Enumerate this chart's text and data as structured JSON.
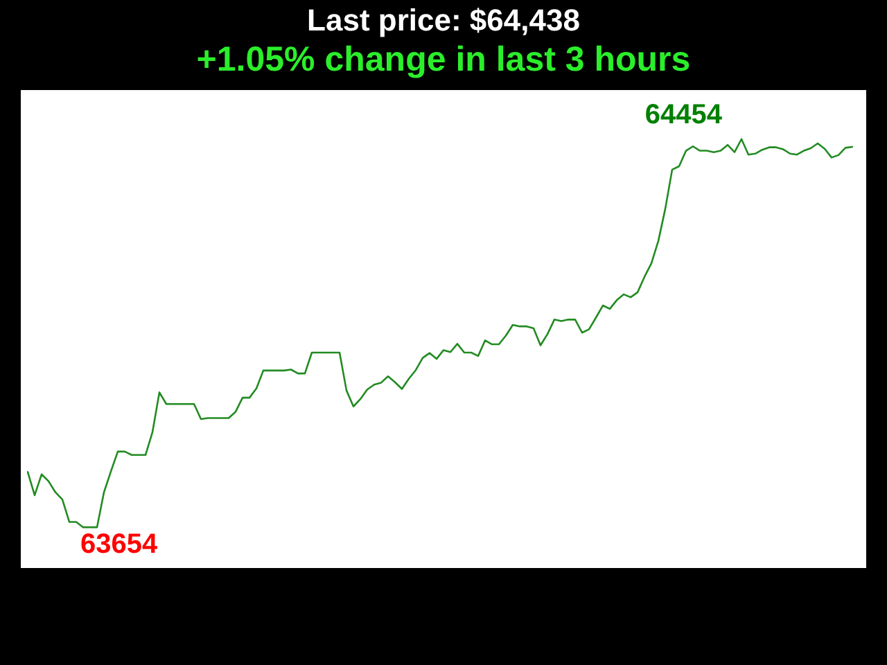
{
  "chart_data": {
    "type": "line",
    "title": "Last price: $64,438",
    "subtitle": "+1.05% change in last 3 hours",
    "categories": [
      null,
      null,
      null,
      null,
      null,
      null,
      null,
      null,
      null,
      null,
      null,
      null,
      null,
      null,
      null,
      null,
      null,
      null,
      null,
      null,
      null,
      null,
      null,
      null,
      null,
      null,
      null,
      null,
      null,
      null,
      null,
      null,
      null,
      null,
      null,
      null,
      null,
      null,
      null,
      null,
      null,
      null,
      null,
      null,
      null,
      null,
      null,
      null,
      null,
      null,
      null,
      null,
      null,
      null,
      null,
      null,
      null,
      null,
      null,
      null,
      null,
      null,
      null,
      null,
      null,
      null,
      null,
      null,
      null,
      null,
      null,
      null,
      null,
      null,
      null,
      null,
      null,
      null,
      null,
      null,
      null,
      null,
      null,
      null,
      null,
      null,
      null,
      null,
      null,
      null,
      null,
      null,
      null,
      null,
      null,
      null,
      null,
      null,
      null,
      null,
      null,
      null,
      null,
      null,
      null,
      null,
      null,
      null,
      null,
      null,
      null,
      null,
      null,
      null,
      null,
      null,
      null,
      null,
      null,
      null
    ],
    "series": [
      {
        "color": "#228b22",
        "values": [
          63768,
          63720,
          63763,
          63749,
          63726,
          63711,
          63665,
          63665,
          63654,
          63654,
          63654,
          63726,
          63769,
          63810,
          63810,
          63803,
          63803,
          63803,
          63850,
          63932,
          63908,
          63908,
          63908,
          63908,
          63908,
          63877,
          63879,
          63879,
          63879,
          63879,
          63892,
          63921,
          63921,
          63940,
          63977,
          63977,
          63977,
          63977,
          63979,
          63971,
          63971,
          64014,
          64014,
          64014,
          64014,
          64014,
          63936,
          63903,
          63918,
          63938,
          63948,
          63952,
          63965,
          63953,
          63939,
          63960,
          63978,
          64003,
          64013,
          64001,
          64019,
          64015,
          64032,
          64014,
          64014,
          64007,
          64039,
          64031,
          64031,
          64049,
          64071,
          64068,
          64068,
          64064,
          64029,
          64052,
          64082,
          64079,
          64082,
          64082,
          64055,
          64062,
          64086,
          64111,
          64104,
          64122,
          64134,
          64128,
          64138,
          64170,
          64198,
          64244,
          64310,
          64391,
          64398,
          64430,
          64439,
          64430,
          64430,
          64427,
          64430,
          64442,
          64427,
          64454,
          64422,
          64424,
          64432,
          64437,
          64437,
          64433,
          64424,
          64422,
          64430,
          64435,
          64445,
          64434,
          64416,
          64421,
          64436,
          64438
        ],
        "value_labels": [
          null,
          null,
          null,
          null,
          null,
          null,
          null,
          null,
          "63654",
          null,
          null,
          null,
          null,
          null,
          null,
          null,
          null,
          null,
          null,
          null,
          null,
          null,
          null,
          null,
          null,
          null,
          null,
          null,
          null,
          null,
          null,
          null,
          null,
          null,
          null,
          null,
          null,
          null,
          null,
          null,
          null,
          null,
          null,
          null,
          null,
          null,
          null,
          null,
          null,
          null,
          null,
          null,
          null,
          null,
          null,
          null,
          null,
          null,
          null,
          null,
          null,
          null,
          null,
          null,
          null,
          null,
          null,
          null,
          null,
          null,
          null,
          null,
          null,
          null,
          null,
          null,
          null,
          null,
          null,
          null,
          null,
          null,
          null,
          null,
          null,
          null,
          null,
          null,
          null,
          null,
          null,
          null,
          null,
          null,
          null,
          null,
          null,
          null,
          null,
          null,
          null,
          null,
          null,
          "64454",
          null,
          null,
          null,
          null,
          null,
          null,
          null,
          null,
          null,
          null,
          null,
          null,
          null,
          null,
          null,
          null
        ]
      }
    ],
    "ylim": [
      63570,
      64555
    ],
    "tick_labels": false,
    "marker": "none",
    "line_style": "solid"
  }
}
